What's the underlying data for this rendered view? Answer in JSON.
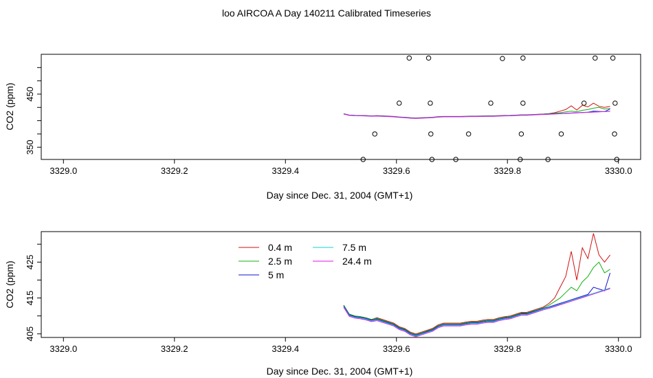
{
  "page_title": "loo AIRCOA A  Day 140211  Calibrated Timeseries",
  "colors": {
    "0.4 m": "#d01010",
    "2.5 m": "#10b010",
    "5 m": "#1010d0",
    "7.5 m": "#10d0d0",
    "24.4 m": "#e010e0"
  },
  "chart_data": [
    {
      "type": "line",
      "title": "loo AIRCOA A  Day 140211  Calibrated Timeseries",
      "xlabel": "Day since Dec. 31, 2004 (GMT+1)",
      "ylabel": "CO2 (ppm)",
      "xlim": [
        3328.96,
        3330.04
      ],
      "ylim": [
        327,
        525
      ],
      "xticks": [
        3329.0,
        3329.2,
        3329.4,
        3329.6,
        3329.8,
        3330.0
      ],
      "xtick_labels": [
        "3329.0",
        "3329.2",
        "3329.4",
        "3329.6",
        "3329.8",
        "3330.0"
      ],
      "yticks": [
        350,
        400,
        450,
        500
      ],
      "ytick_labels": [
        "350",
        "",
        "450",
        ""
      ],
      "extra_yticks": [
        375,
        425,
        475
      ],
      "grid": false,
      "legend": "none",
      "x": [
        3329.505,
        3329.515,
        3329.525,
        3329.535,
        3329.545,
        3329.555,
        3329.565,
        3329.575,
        3329.585,
        3329.595,
        3329.605,
        3329.615,
        3329.625,
        3329.635,
        3329.645,
        3329.655,
        3329.665,
        3329.675,
        3329.685,
        3329.695,
        3329.705,
        3329.715,
        3329.725,
        3329.735,
        3329.745,
        3329.755,
        3329.765,
        3329.775,
        3329.785,
        3329.795,
        3329.805,
        3329.815,
        3329.825,
        3329.835,
        3329.845,
        3329.855,
        3329.865,
        3329.875,
        3329.885,
        3329.895,
        3329.905,
        3329.915,
        3329.925,
        3329.935,
        3329.945,
        3329.955,
        3329.965,
        3329.975,
        3329.985
      ],
      "series": [
        {
          "name": "0.4 m",
          "values": [
            413.0,
            410.5,
            410.0,
            409.8,
            409.5,
            409.0,
            409.5,
            409.0,
            408.5,
            408.0,
            407.0,
            406.5,
            405.5,
            405.0,
            405.5,
            406.0,
            406.5,
            407.5,
            408.0,
            408.0,
            408.0,
            408.0,
            408.3,
            408.5,
            408.5,
            408.8,
            409.0,
            409.0,
            409.5,
            409.8,
            410.0,
            410.5,
            411.0,
            411.0,
            411.5,
            412.0,
            412.5,
            413.5,
            415.0,
            418.0,
            421.0,
            428.0,
            420.0,
            429.0,
            426.0,
            433.0,
            427.0,
            425.0,
            427.0
          ]
        },
        {
          "name": "2.5 m",
          "values": [
            413.0,
            410.5,
            410.0,
            409.8,
            409.5,
            409.0,
            409.3,
            408.8,
            408.3,
            407.8,
            406.8,
            406.3,
            405.3,
            404.8,
            405.3,
            405.8,
            406.3,
            407.3,
            407.8,
            407.8,
            407.8,
            407.8,
            408.1,
            408.3,
            408.3,
            408.6,
            408.8,
            408.8,
            409.3,
            409.6,
            409.8,
            410.3,
            410.8,
            410.8,
            411.3,
            411.8,
            412.3,
            413.0,
            414.0,
            415.0,
            416.5,
            418.0,
            417.0,
            419.5,
            421.0,
            423.5,
            425.0,
            422.0,
            423.0
          ]
        },
        {
          "name": "5 m",
          "values": [
            412.8,
            410.3,
            409.8,
            409.6,
            409.3,
            408.8,
            409.1,
            408.6,
            408.1,
            407.6,
            406.6,
            406.1,
            405.1,
            404.6,
            405.1,
            405.6,
            406.1,
            407.1,
            407.6,
            407.6,
            407.6,
            407.6,
            407.9,
            408.1,
            408.1,
            408.4,
            408.6,
            408.6,
            409.1,
            409.4,
            409.6,
            410.1,
            410.6,
            410.6,
            411.1,
            411.6,
            412.1,
            412.5,
            413.0,
            413.5,
            414.0,
            414.5,
            415.0,
            415.5,
            416.0,
            418.0,
            417.5,
            417.0,
            422.0
          ]
        },
        {
          "name": "7.5 m",
          "values": [
            412.6,
            410.1,
            409.6,
            409.4,
            409.1,
            408.6,
            408.9,
            408.4,
            407.9,
            407.4,
            406.4,
            405.9,
            404.9,
            404.4,
            404.9,
            405.4,
            405.9,
            406.9,
            407.4,
            407.4,
            407.4,
            407.4,
            407.7,
            407.9,
            407.9,
            408.2,
            408.4,
            408.4,
            408.9,
            409.2,
            409.4,
            409.9,
            410.4,
            410.4,
            410.9,
            411.4,
            411.9,
            412.3,
            412.8,
            413.3,
            413.8,
            414.3,
            414.8,
            415.3,
            415.8,
            416.3,
            416.8,
            417.3,
            417.8
          ]
        },
        {
          "name": "24.4 m",
          "values": [
            412.4,
            409.9,
            409.4,
            409.2,
            408.9,
            408.4,
            408.7,
            408.2,
            407.7,
            407.2,
            406.2,
            405.7,
            404.7,
            404.2,
            404.7,
            405.2,
            405.7,
            406.7,
            407.2,
            407.2,
            407.2,
            407.2,
            407.5,
            407.7,
            407.7,
            408.0,
            408.2,
            408.2,
            408.7,
            409.0,
            409.2,
            409.7,
            410.2,
            410.2,
            410.7,
            411.2,
            411.7,
            412.1,
            412.6,
            413.1,
            413.6,
            414.1,
            414.6,
            415.1,
            415.6,
            416.1,
            416.6,
            417.1,
            417.6
          ]
        }
      ],
      "markers": {
        "type": "scatter",
        "symbol": "open-circle",
        "x": [
          3329.623,
          3329.658,
          3329.791,
          3329.828,
          3329.958,
          3329.99,
          3329.605,
          3329.661,
          3329.77,
          3329.828,
          3329.938,
          3329.994,
          3329.561,
          3329.662,
          3329.73,
          3329.825,
          3329.897,
          3329.993,
          3329.54,
          3329.664,
          3329.707,
          3329.823,
          3329.873,
          3329.997
        ],
        "y": [
          518,
          518,
          517,
          518,
          518,
          518,
          433,
          433,
          433,
          433,
          433,
          433,
          375,
          375,
          375,
          375,
          375,
          375,
          327,
          327,
          327,
          327,
          327,
          327
        ]
      }
    },
    {
      "type": "line",
      "xlabel": "Day since Dec. 31, 2004 (GMT+1)",
      "ylabel": "CO2 (ppm)",
      "xlim": [
        3328.96,
        3330.04
      ],
      "ylim": [
        404.0,
        433.5
      ],
      "xticks": [
        3329.0,
        3329.2,
        3329.4,
        3329.6,
        3329.8,
        3330.0
      ],
      "xtick_labels": [
        "3329.0",
        "3329.2",
        "3329.4",
        "3329.6",
        "3329.8",
        "3330.0"
      ],
      "yticks": [
        405,
        410,
        415,
        420,
        425,
        430
      ],
      "ytick_labels": [
        "405",
        "",
        "415",
        "",
        "425",
        ""
      ],
      "grid": false,
      "legend": "top-center",
      "legend_entries": [
        "0.4 m",
        "2.5 m",
        "5 m",
        "7.5 m",
        "24.4 m"
      ],
      "x_ref": 0,
      "series_ref": 0
    }
  ]
}
